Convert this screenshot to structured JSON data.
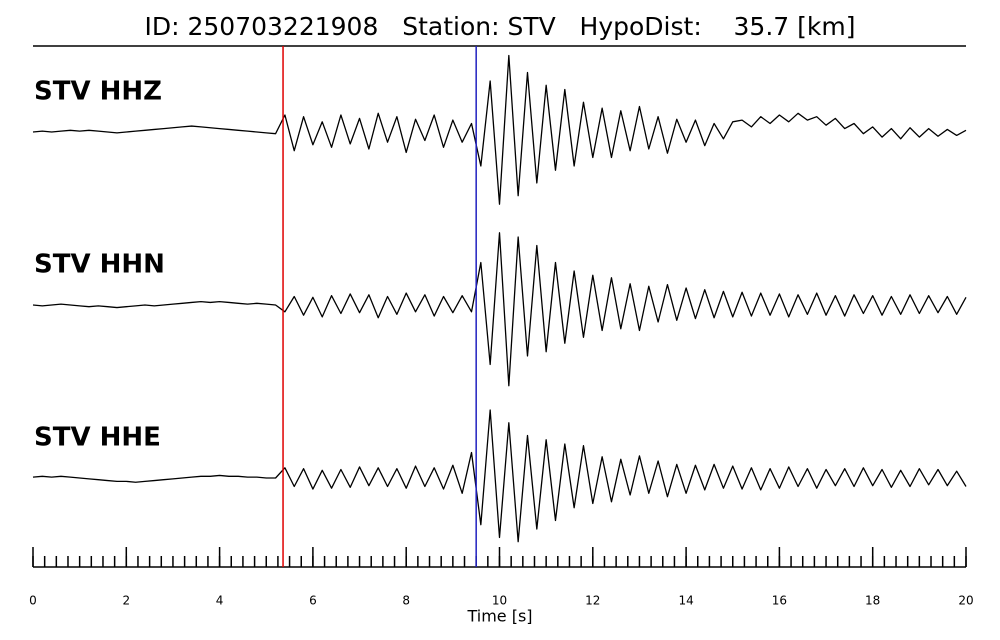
{
  "chart_data": {
    "type": "line",
    "title": "ID: 250703221908   Station: STV   HypoDist:    35.7 [km]",
    "xlabel": "Time [s]",
    "xlim": [
      0,
      20
    ],
    "ylim": [
      -100,
      100
    ],
    "xticks": [
      0,
      2,
      4,
      6,
      8,
      10,
      12,
      14,
      16,
      18,
      20
    ],
    "minor_xticks": [
      0,
      0.25,
      0.5,
      0.75,
      1,
      1.25,
      1.5,
      1.75,
      2,
      2.25,
      2.5,
      2.75,
      3,
      3.25,
      3.5,
      3.75,
      4,
      4.25,
      4.5,
      4.75,
      5,
      5.25,
      5.5,
      5.75,
      6,
      6.25,
      6.5,
      6.75,
      7,
      7.25,
      7.5,
      7.75,
      8,
      8.25,
      8.5,
      8.75,
      9,
      9.25,
      9.5,
      9.75,
      10,
      10.25,
      10.5,
      10.75,
      11,
      11.25,
      11.5,
      11.75,
      12,
      12.25,
      12.5,
      12.75,
      13,
      13.25,
      13.5,
      13.75,
      14,
      14.25,
      14.5,
      14.75,
      15,
      15.25,
      15.5,
      15.75,
      16,
      16.25,
      16.5,
      16.75,
      17,
      17.25,
      17.5,
      17.75,
      18,
      18.25,
      18.5,
      18.75,
      19,
      19.25,
      19.5,
      19.75,
      20
    ],
    "x": [
      0,
      0.2,
      0.4,
      0.6,
      0.8,
      1,
      1.2,
      1.4,
      1.6,
      1.8,
      2,
      2.2,
      2.4,
      2.6,
      2.8,
      3,
      3.2,
      3.4,
      3.6,
      3.8,
      4,
      4.2,
      4.4,
      4.6,
      4.8,
      5,
      5.2,
      5.4,
      5.6,
      5.8,
      6,
      6.2,
      6.4,
      6.6,
      6.8,
      7,
      7.2,
      7.4,
      7.6,
      7.8,
      8,
      8.2,
      8.4,
      8.6,
      8.8,
      9,
      9.2,
      9.4,
      9.6,
      9.8,
      10,
      10.2,
      10.4,
      10.6,
      10.8,
      11,
      11.2,
      11.4,
      11.6,
      11.8,
      12,
      12.2,
      12.4,
      12.6,
      12.8,
      13,
      13.2,
      13.4,
      13.6,
      13.8,
      14,
      14.2,
      14.4,
      14.6,
      14.8,
      15,
      15.2,
      15.4,
      15.6,
      15.8,
      16,
      16.2,
      16.4,
      16.6,
      16.8,
      17,
      17.2,
      17.4,
      17.6,
      17.8,
      18,
      18.2,
      18.4,
      18.6,
      18.8,
      19,
      19.2,
      19.4,
      19.6,
      19.8,
      20
    ],
    "label_color": "#4a9a00",
    "series": [
      {
        "name": "STV HHZ",
        "color": "#000000",
        "values": [
          0,
          1,
          0,
          1,
          2,
          1,
          2,
          1,
          0,
          -1,
          0,
          1,
          2,
          3,
          4,
          5,
          6,
          7,
          6,
          5,
          4,
          3,
          2,
          1,
          0,
          -1,
          -2,
          20,
          -22,
          18,
          -15,
          12,
          -18,
          20,
          -14,
          16,
          -20,
          22,
          -12,
          18,
          -24,
          15,
          -10,
          20,
          -18,
          14,
          -12,
          10,
          -40,
          60,
          -85,
          90,
          -75,
          70,
          -60,
          55,
          -45,
          50,
          -40,
          35,
          -30,
          28,
          -30,
          25,
          -22,
          30,
          -20,
          18,
          -25,
          15,
          -12,
          14,
          -16,
          10,
          -8,
          12,
          14,
          6,
          18,
          10,
          20,
          12,
          22,
          14,
          18,
          8,
          16,
          4,
          10,
          -2,
          6,
          -6,
          4,
          -8,
          5,
          -6,
          4,
          -5,
          3,
          -4,
          2
        ]
      },
      {
        "name": "STV HHN",
        "color": "#000000",
        "values": [
          0,
          -1,
          0,
          1,
          0,
          -1,
          -2,
          -1,
          -2,
          -3,
          -2,
          -1,
          0,
          -1,
          0,
          1,
          2,
          3,
          4,
          3,
          4,
          3,
          2,
          1,
          2,
          1,
          0,
          -8,
          10,
          -12,
          9,
          -14,
          11,
          -10,
          13,
          -9,
          12,
          -15,
          10,
          -11,
          14,
          -8,
          12,
          -13,
          10,
          -9,
          11,
          -8,
          50,
          -70,
          85,
          -95,
          80,
          -60,
          70,
          -55,
          50,
          -45,
          40,
          -38,
          35,
          -30,
          32,
          -28,
          25,
          -30,
          22,
          -20,
          24,
          -18,
          20,
          -16,
          18,
          -15,
          16,
          -14,
          15,
          -13,
          14,
          -12,
          13,
          -14,
          12,
          -11,
          14,
          -12,
          11,
          -13,
          12,
          -10,
          11,
          -12,
          10,
          -11,
          12,
          -10,
          11,
          -9,
          10,
          -11,
          9
        ]
      },
      {
        "name": "STV HHE",
        "color": "#000000",
        "values": [
          1,
          2,
          1,
          2,
          1,
          0,
          -1,
          -2,
          -3,
          -4,
          -4,
          -5,
          -4,
          -3,
          -2,
          -1,
          0,
          1,
          2,
          2,
          3,
          2,
          2,
          1,
          1,
          0,
          0,
          12,
          -10,
          11,
          -13,
          9,
          -12,
          10,
          -11,
          13,
          -9,
          12,
          -10,
          11,
          -12,
          14,
          -10,
          12,
          -13,
          15,
          -18,
          30,
          -55,
          80,
          -70,
          65,
          -75,
          50,
          -60,
          45,
          -50,
          40,
          -35,
          38,
          -30,
          25,
          -28,
          22,
          -20,
          26,
          -18,
          20,
          -22,
          16,
          -18,
          15,
          -14,
          16,
          -12,
          14,
          -13,
          12,
          -14,
          11,
          -12,
          13,
          -10,
          11,
          -12,
          10,
          -9,
          11,
          -10,
          12,
          -9,
          10,
          -11,
          9,
          -10,
          11,
          -8,
          10,
          -9,
          8,
          -10
        ]
      }
    ],
    "markers": [
      {
        "value": 5.36,
        "color": "#e00000"
      },
      {
        "value": 9.5,
        "color": "#2020c0"
      }
    ]
  }
}
